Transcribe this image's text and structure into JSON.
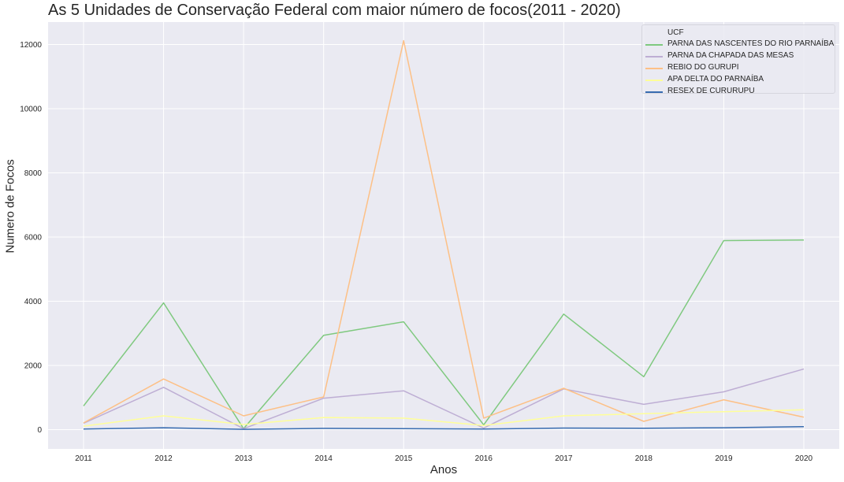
{
  "chart_data": {
    "type": "line",
    "title": "As 5 Unidades de Conservação Federal com maior número de focos(2011 - 2020)",
    "xlabel": "Anos",
    "ylabel": "Numero de Focos",
    "x": [
      "2011",
      "2012",
      "2013",
      "2014",
      "2015",
      "2016",
      "2017",
      "2018",
      "2019",
      "2020"
    ],
    "ylim": [
      -600,
      12700
    ],
    "yticks": [
      0,
      2000,
      4000,
      6000,
      8000,
      10000,
      12000
    ],
    "grid": true,
    "legend_title": "UCF",
    "legend_position": "top-right",
    "series": [
      {
        "name": "PARNA DAS NASCENTES DO RIO PARNAÍBA",
        "color": "#7fc97f",
        "values": [
          740,
          3950,
          30,
          2940,
          3360,
          150,
          3600,
          1650,
          5890,
          5910
        ]
      },
      {
        "name": "PARNA DA CHAPADA DAS MESAS",
        "color": "#beaed4",
        "values": [
          200,
          1320,
          30,
          980,
          1210,
          50,
          1270,
          790,
          1180,
          1890
        ]
      },
      {
        "name": "REBIO DO GURUPI",
        "color": "#fdc086",
        "values": [
          210,
          1580,
          430,
          1020,
          12120,
          360,
          1290,
          260,
          930,
          390
        ]
      },
      {
        "name": "APA DELTA DO PARNAÍBA",
        "color": "#ffff99",
        "values": [
          110,
          430,
          160,
          380,
          360,
          130,
          430,
          500,
          560,
          620
        ]
      },
      {
        "name": "RESEX DE CURURUPU",
        "color": "#386cb0",
        "values": [
          20,
          60,
          10,
          40,
          30,
          20,
          50,
          45,
          60,
          95
        ]
      }
    ]
  }
}
